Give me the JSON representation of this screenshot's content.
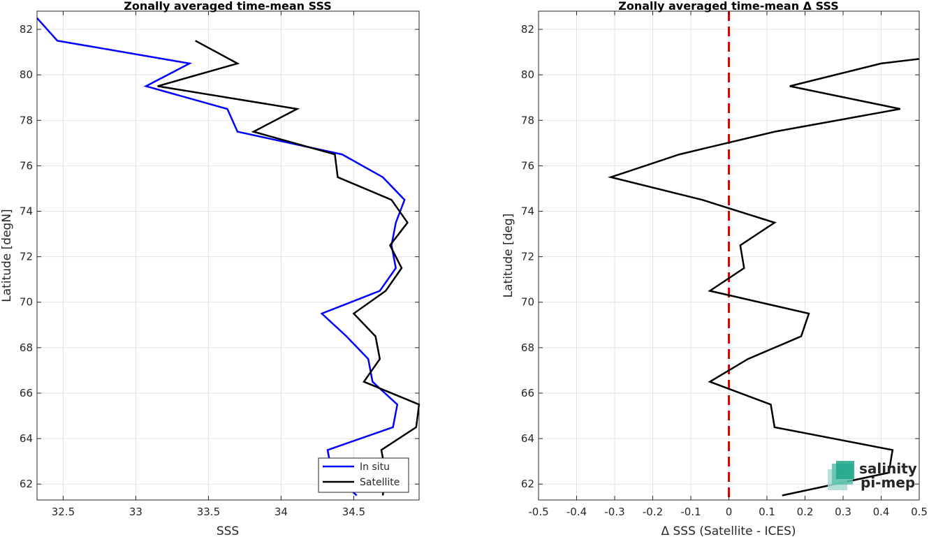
{
  "chart_data": [
    {
      "type": "line",
      "title": "Zonally averaged time-mean SSS",
      "xlabel": "SSS",
      "ylabel": "Latitude [degN]",
      "xlim": [
        32.32,
        34.95
      ],
      "ylim": [
        61.3,
        82.8
      ],
      "xticks": [
        32.5,
        33,
        33.5,
        34,
        34.5
      ],
      "yticks": [
        62,
        64,
        66,
        68,
        70,
        72,
        74,
        76,
        78,
        80,
        82
      ],
      "grid": true,
      "legend_position": "bottom-right",
      "series": [
        {
          "name": "In situ",
          "color": "#0000ff",
          "points": [
            [
              32.32,
              82.5
            ],
            [
              32.46,
              81.5
            ],
            [
              33.37,
              80.5
            ],
            [
              33.07,
              79.5
            ],
            [
              33.63,
              78.5
            ],
            [
              33.7,
              77.5
            ],
            [
              34.42,
              76.5
            ],
            [
              34.7,
              75.5
            ],
            [
              34.85,
              74.5
            ],
            [
              34.79,
              73.5
            ],
            [
              34.76,
              72.5
            ],
            [
              34.79,
              71.5
            ],
            [
              34.68,
              70.5
            ],
            [
              34.28,
              69.5
            ],
            [
              34.45,
              68.5
            ],
            [
              34.6,
              67.5
            ],
            [
              34.63,
              66.5
            ],
            [
              34.8,
              65.5
            ],
            [
              34.77,
              64.5
            ],
            [
              34.32,
              63.5
            ],
            [
              34.35,
              62.5
            ],
            [
              34.52,
              61.5
            ]
          ]
        },
        {
          "name": "Satellite",
          "color": "#000000",
          "points": [
            [
              33.41,
              81.5
            ],
            [
              33.7,
              80.5
            ],
            [
              33.15,
              79.5
            ],
            [
              34.11,
              78.5
            ],
            [
              33.81,
              77.5
            ],
            [
              34.37,
              76.5
            ],
            [
              34.39,
              75.5
            ],
            [
              34.76,
              74.5
            ],
            [
              34.87,
              73.5
            ],
            [
              34.75,
              72.5
            ],
            [
              34.83,
              71.5
            ],
            [
              34.72,
              70.5
            ],
            [
              34.5,
              69.5
            ],
            [
              34.65,
              68.5
            ],
            [
              34.68,
              67.5
            ],
            [
              34.57,
              66.5
            ],
            [
              34.95,
              65.5
            ],
            [
              34.93,
              64.5
            ],
            [
              34.69,
              63.5
            ],
            [
              34.72,
              62.5
            ],
            [
              34.7,
              61.5
            ]
          ]
        }
      ]
    },
    {
      "type": "line",
      "title": "Zonally averaged time-mean Δ SSS",
      "xlabel": "Δ SSS (Satellite - ICES)",
      "ylabel": "Latitude [deg]",
      "xlim": [
        -0.5,
        0.5
      ],
      "ylim": [
        61.3,
        82.8
      ],
      "xticks": [
        -0.5,
        -0.4,
        -0.3,
        -0.2,
        -0.1,
        0,
        0.1,
        0.2,
        0.3,
        0.4,
        0.5
      ],
      "yticks": [
        62,
        64,
        66,
        68,
        70,
        72,
        74,
        76,
        78,
        80,
        82
      ],
      "grid": true,
      "reference_line": {
        "x": 0,
        "color": "#e00000",
        "style": "dashed"
      },
      "series": [
        {
          "color": "#000000",
          "points": [
            [
              0.5,
              80.7
            ],
            [
              0.4,
              80.5
            ],
            [
              0.16,
              79.5
            ],
            [
              0.45,
              78.5
            ],
            [
              0.12,
              77.5
            ],
            [
              -0.13,
              76.5
            ],
            [
              -0.31,
              75.5
            ],
            [
              -0.07,
              74.5
            ],
            [
              0.12,
              73.5
            ],
            [
              0.03,
              72.5
            ],
            [
              0.04,
              71.5
            ],
            [
              -0.05,
              70.5
            ],
            [
              0.21,
              69.5
            ],
            [
              0.19,
              68.5
            ],
            [
              0.05,
              67.5
            ],
            [
              -0.05,
              66.5
            ],
            [
              0.11,
              65.5
            ],
            [
              0.12,
              64.5
            ],
            [
              0.43,
              63.5
            ],
            [
              0.42,
              62.5
            ],
            [
              0.14,
              61.5
            ]
          ]
        }
      ]
    }
  ],
  "legend": {
    "entries": [
      "In situ",
      "Satellite"
    ],
    "colors": [
      "#0000ff",
      "#000000"
    ]
  },
  "logo": {
    "line1": "salinity",
    "line2": "pi-mep",
    "color1": "#1fa68a",
    "color2": "#2e5f5a"
  }
}
